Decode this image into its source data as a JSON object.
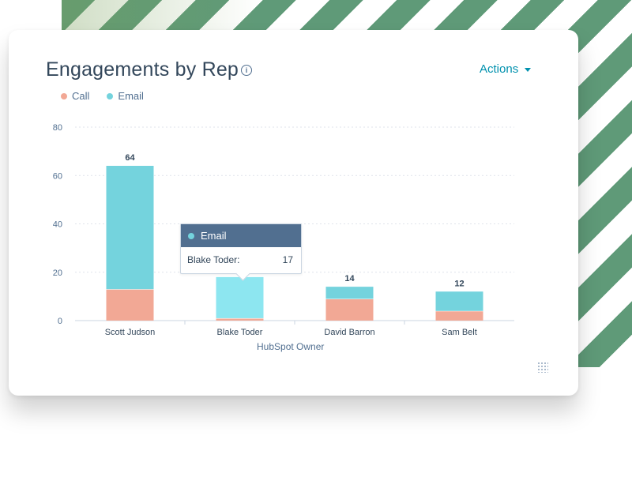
{
  "card": {
    "title": "Engagements by Rep",
    "info_icon": "info-icon",
    "actions_label": "Actions"
  },
  "colors": {
    "call": "#f2a895",
    "email": "#74d3dd",
    "email_highlight": "#8de6f0",
    "accent": "#0091ae"
  },
  "chart_data": {
    "type": "bar",
    "stacked": true,
    "categories": [
      "Scott Judson",
      "Blake Toder",
      "David Barron",
      "Sam Belt"
    ],
    "series": [
      {
        "name": "Call",
        "values": [
          13,
          1,
          9,
          4
        ]
      },
      {
        "name": "Email",
        "values": [
          51,
          17,
          5,
          8
        ]
      }
    ],
    "totals": [
      "64",
      "",
      "14",
      "12"
    ],
    "xlabel": "HubSpot Owner",
    "ylabel": "",
    "ylim": [
      0,
      80
    ],
    "yticks": [
      0,
      20,
      40,
      60,
      80
    ],
    "grid": true,
    "legend_position": "top-left"
  },
  "tooltip": {
    "series": "Email",
    "label": "Blake Toder:",
    "value": "17"
  }
}
